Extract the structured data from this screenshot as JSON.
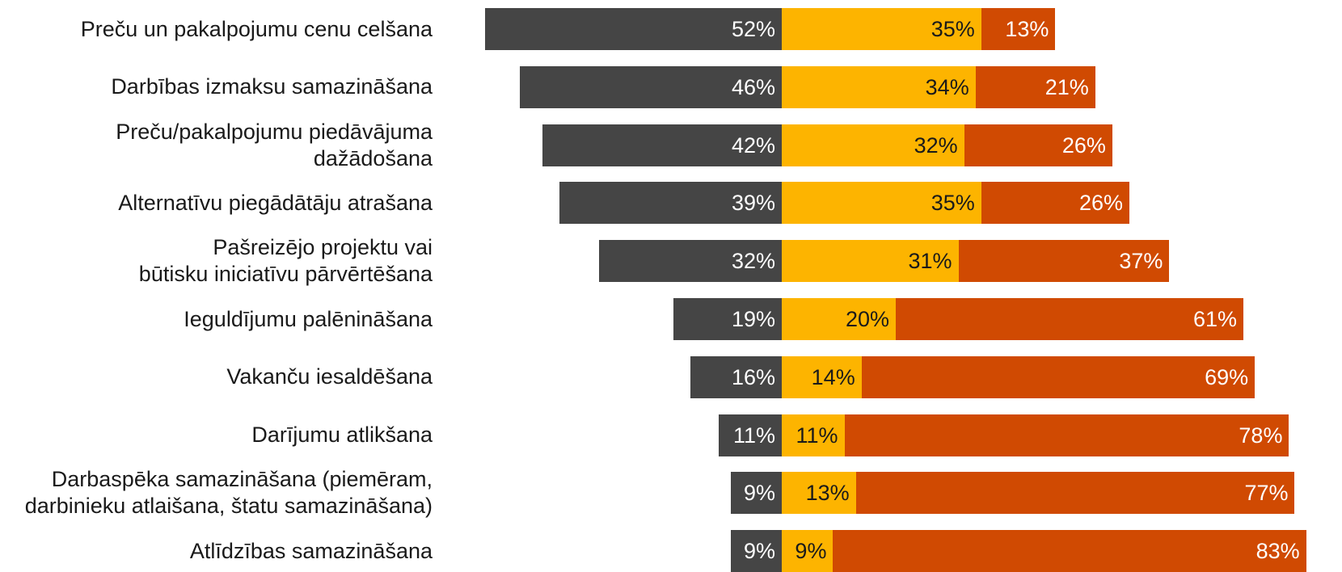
{
  "colors": {
    "dark": "#454545",
    "yellow": "#FDB400",
    "orange": "#D04A02",
    "text_dark": "#1a1a1a",
    "text_light": "#ffffff"
  },
  "chart_data": {
    "type": "bar",
    "orientation": "horizontal",
    "stacking": "diverging",
    "unit": "%",
    "categories": [
      "Preču un pakalpojumu cenu celšana",
      "Darbības izmaksu samazināšana",
      "Preču/pakalpojumu piedāvājuma\ndažādošana",
      "Alternatīvu piegādātāju atrašana",
      "Pašreizējo projektu vai\nbūtisku iniciatīvu pārvērtēšana",
      "Ieguldījumu palēnināšana",
      "Vakanču iesaldēšana",
      "Darījumu atlikšana",
      "Darbaspēka samazināšana (piemēram,\ndarbinieku atlaišana, štatu samazināšana)",
      "Atlīdzības samazināšana"
    ],
    "series": [
      {
        "color": "#454545",
        "values": [
          52,
          46,
          42,
          39,
          32,
          19,
          16,
          11,
          9,
          9
        ]
      },
      {
        "color": "#FDB400",
        "values": [
          35,
          34,
          32,
          35,
          31,
          20,
          14,
          11,
          13,
          9
        ]
      },
      {
        "color": "#D04A02",
        "values": [
          13,
          21,
          26,
          26,
          37,
          61,
          69,
          78,
          77,
          83
        ]
      }
    ],
    "labels": [
      [
        "52%",
        "46%",
        "42%",
        "39%",
        "32%",
        "19%",
        "16%",
        "11%",
        "9%",
        "9%"
      ],
      [
        "35%",
        "34%",
        "32%",
        "35%",
        "31%",
        "20%",
        "14%",
        "11%",
        "13%",
        "9%"
      ],
      [
        "13%",
        "21%",
        "26%",
        "26%",
        "37%",
        "61%",
        "69%",
        "78%",
        "77%",
        "83%"
      ]
    ],
    "grid": false,
    "legend": "none"
  }
}
